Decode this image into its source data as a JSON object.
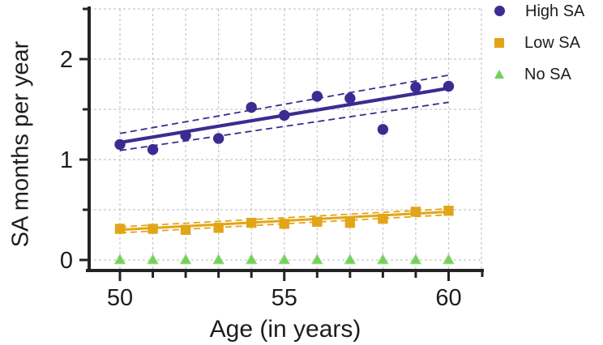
{
  "figure": {
    "background_color": "#ffffff",
    "text_color": "#1d1d1b",
    "axis_color": "#232323",
    "gridline_color": "#c6c6c6"
  },
  "chart_data": {
    "type": "scatter",
    "title": "",
    "xlabel": "Age (in years)",
    "ylabel": "SA months per year",
    "xlim": [
      48.9,
      61.1
    ],
    "ylim": [
      0,
      2.5
    ],
    "grid": true,
    "legend_position": "top-right",
    "x_major_ticks": [
      50,
      55,
      60
    ],
    "x_minor_ticks": [
      51,
      52,
      53,
      54,
      56,
      57,
      58,
      59
    ],
    "y_major_ticks": [
      0,
      1,
      2
    ],
    "y_minor_ticks": [
      0.5,
      1.5,
      2.5
    ],
    "x_gridlines": [
      50,
      51,
      52,
      53,
      54,
      55,
      56,
      57,
      58,
      59,
      60,
      61
    ],
    "y_gridlines": [
      0,
      0.5,
      1,
      1.5,
      2,
      2.5
    ],
    "x": [
      50,
      51,
      52,
      53,
      54,
      55,
      56,
      57,
      58,
      59,
      60
    ],
    "series": [
      {
        "name": "High SA",
        "marker": "circle",
        "color": "#3d2b91",
        "values": [
          1.15,
          1.1,
          1.24,
          1.21,
          1.52,
          1.44,
          1.63,
          1.61,
          1.3,
          1.72,
          1.73
        ],
        "trend_line": {
          "x": [
            50,
            60
          ],
          "y": [
            1.17,
            1.71
          ]
        },
        "ci_upper": {
          "x": [
            50,
            60
          ],
          "y": [
            1.26,
            1.84
          ]
        },
        "ci_lower": {
          "x": [
            50,
            60
          ],
          "y": [
            1.09,
            1.57
          ]
        }
      },
      {
        "name": "Low SA",
        "marker": "square",
        "color": "#e2a517",
        "values": [
          0.31,
          0.31,
          0.3,
          0.32,
          0.37,
          0.36,
          0.38,
          0.37,
          0.41,
          0.48,
          0.49
        ],
        "trend_line": {
          "x": [
            50,
            60
          ],
          "y": [
            0.3,
            0.48
          ]
        },
        "ci_upper": {
          "x": [
            50,
            60
          ],
          "y": [
            0.33,
            0.51
          ]
        },
        "ci_lower": {
          "x": [
            50,
            60
          ],
          "y": [
            0.27,
            0.45
          ]
        }
      },
      {
        "name": "No SA",
        "marker": "triangle",
        "color": "#74d05c",
        "marker_edge_color": "#9fdf87",
        "values": [
          0,
          0,
          0,
          0,
          0,
          0,
          0,
          0,
          0,
          0,
          0
        ]
      }
    ]
  }
}
